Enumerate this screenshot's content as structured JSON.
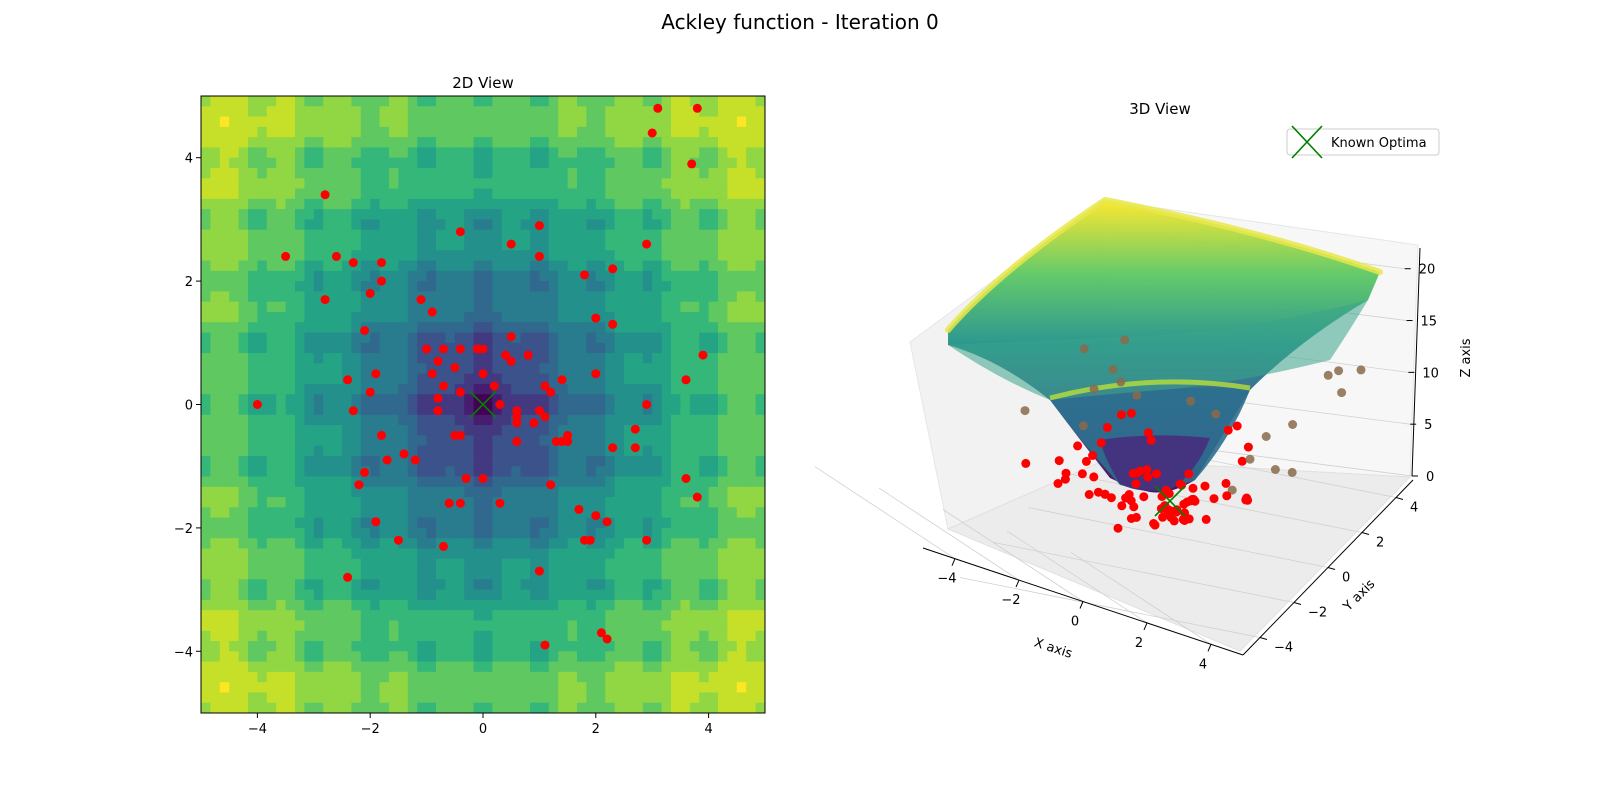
{
  "figure": {
    "title": "Ackley function - Iteration 0"
  },
  "chart_data": [
    {
      "type": "heatmap",
      "title": "2D View",
      "function": "Ackley",
      "xlim": [
        -5,
        5
      ],
      "ylim": [
        -5,
        5
      ],
      "xticks": [
        -4,
        -2,
        0,
        2,
        4
      ],
      "yticks": [
        -4,
        -2,
        0,
        2,
        4
      ],
      "colormap": "viridis",
      "contour_levels": 12,
      "known_optimum": [
        0,
        0
      ],
      "marker_colors": {
        "population": "#ff0000",
        "optimum": "#008000"
      },
      "population": [
        [
          -4.0,
          0.0
        ],
        [
          -3.5,
          2.4
        ],
        [
          -2.8,
          3.4
        ],
        [
          -2.8,
          1.7
        ],
        [
          -2.6,
          2.4
        ],
        [
          -2.4,
          0.4
        ],
        [
          -2.3,
          2.3
        ],
        [
          -2.3,
          -0.1
        ],
        [
          -2.2,
          -1.3
        ],
        [
          -2.1,
          1.2
        ],
        [
          -2.1,
          -1.1
        ],
        [
          -2.0,
          1.8
        ],
        [
          -2.0,
          0.2
        ],
        [
          -1.9,
          0.5
        ],
        [
          -1.8,
          2.3
        ],
        [
          -1.8,
          2.0
        ],
        [
          -1.8,
          -0.5
        ],
        [
          -1.7,
          -0.9
        ],
        [
          -1.9,
          -1.9
        ],
        [
          -1.5,
          -2.2
        ],
        [
          -1.4,
          -0.8
        ],
        [
          -1.2,
          -0.9
        ],
        [
          -2.4,
          -2.8
        ],
        [
          -1.1,
          1.7
        ],
        [
          -1.0,
          0.9
        ],
        [
          -0.9,
          1.5
        ],
        [
          -0.9,
          0.5
        ],
        [
          -0.8,
          0.7
        ],
        [
          -0.8,
          0.1
        ],
        [
          -0.8,
          -0.1
        ],
        [
          -0.7,
          0.3
        ],
        [
          -0.7,
          0.9
        ],
        [
          -0.7,
          -2.3
        ],
        [
          -0.6,
          -1.6
        ],
        [
          -0.6,
          -1.6
        ],
        [
          -0.5,
          0.6
        ],
        [
          -0.5,
          -0.5
        ],
        [
          -0.4,
          2.8
        ],
        [
          -0.4,
          0.9
        ],
        [
          -0.4,
          -0.5
        ],
        [
          -0.4,
          -1.6
        ],
        [
          -0.3,
          -1.2
        ],
        [
          -0.4,
          0.2
        ],
        [
          -0.1,
          0.9
        ],
        [
          0.0,
          0.9
        ],
        [
          0.0,
          0.5
        ],
        [
          0.0,
          -1.2
        ],
        [
          0.2,
          0.3
        ],
        [
          0.3,
          0.0
        ],
        [
          0.3,
          -1.6
        ],
        [
          0.4,
          0.8
        ],
        [
          0.5,
          0.7
        ],
        [
          0.5,
          1.1
        ],
        [
          0.5,
          2.6
        ],
        [
          0.6,
          -0.1
        ],
        [
          0.6,
          -0.2
        ],
        [
          0.6,
          -0.3
        ],
        [
          0.6,
          -0.6
        ],
        [
          0.8,
          0.8
        ],
        [
          0.9,
          -0.3
        ],
        [
          1.0,
          2.9
        ],
        [
          1.0,
          2.4
        ],
        [
          1.0,
          -0.1
        ],
        [
          1.0,
          -2.7
        ],
        [
          1.1,
          0.3
        ],
        [
          1.1,
          -0.2
        ],
        [
          1.2,
          0.2
        ],
        [
          1.2,
          -1.3
        ],
        [
          1.3,
          -0.6
        ],
        [
          1.4,
          0.4
        ],
        [
          1.4,
          -0.6
        ],
        [
          1.5,
          -0.5
        ],
        [
          1.5,
          -0.6
        ],
        [
          1.1,
          -3.9
        ],
        [
          1.7,
          -1.7
        ],
        [
          1.8,
          2.1
        ],
        [
          1.8,
          -2.2
        ],
        [
          1.9,
          -2.2
        ],
        [
          2.0,
          1.4
        ],
        [
          2.0,
          0.5
        ],
        [
          2.0,
          -1.8
        ],
        [
          2.1,
          -3.7
        ],
        [
          2.2,
          -1.9
        ],
        [
          2.3,
          2.2
        ],
        [
          2.3,
          1.3
        ],
        [
          2.3,
          -0.7
        ],
        [
          2.2,
          -3.8
        ],
        [
          2.7,
          -0.4
        ],
        [
          2.7,
          -0.7
        ],
        [
          2.9,
          2.6
        ],
        [
          2.9,
          0.0
        ],
        [
          2.9,
          -2.2
        ],
        [
          3.0,
          4.4
        ],
        [
          3.1,
          4.8
        ],
        [
          3.6,
          0.4
        ],
        [
          3.6,
          -1.2
        ],
        [
          3.7,
          3.9
        ],
        [
          3.8,
          4.8
        ],
        [
          3.8,
          -1.5
        ],
        [
          3.9,
          0.8
        ]
      ]
    },
    {
      "type": "surface3d",
      "title": "3D View",
      "xlabel": "X axis",
      "ylabel": "Y axis",
      "zlabel": "Z axis",
      "xticks": [
        -4,
        -2,
        0,
        2,
        4
      ],
      "yticks": [
        -4,
        -2,
        0,
        2,
        4
      ],
      "zticks": [
        0,
        5,
        10,
        15,
        20
      ],
      "xlim": [
        -5,
        5
      ],
      "ylim": [
        -5,
        5
      ],
      "zlim": [
        0,
        22
      ],
      "legend": {
        "entries": [
          "Known Optima"
        ],
        "location": "upper right"
      },
      "known_optimum": [
        0,
        0,
        0
      ]
    }
  ]
}
